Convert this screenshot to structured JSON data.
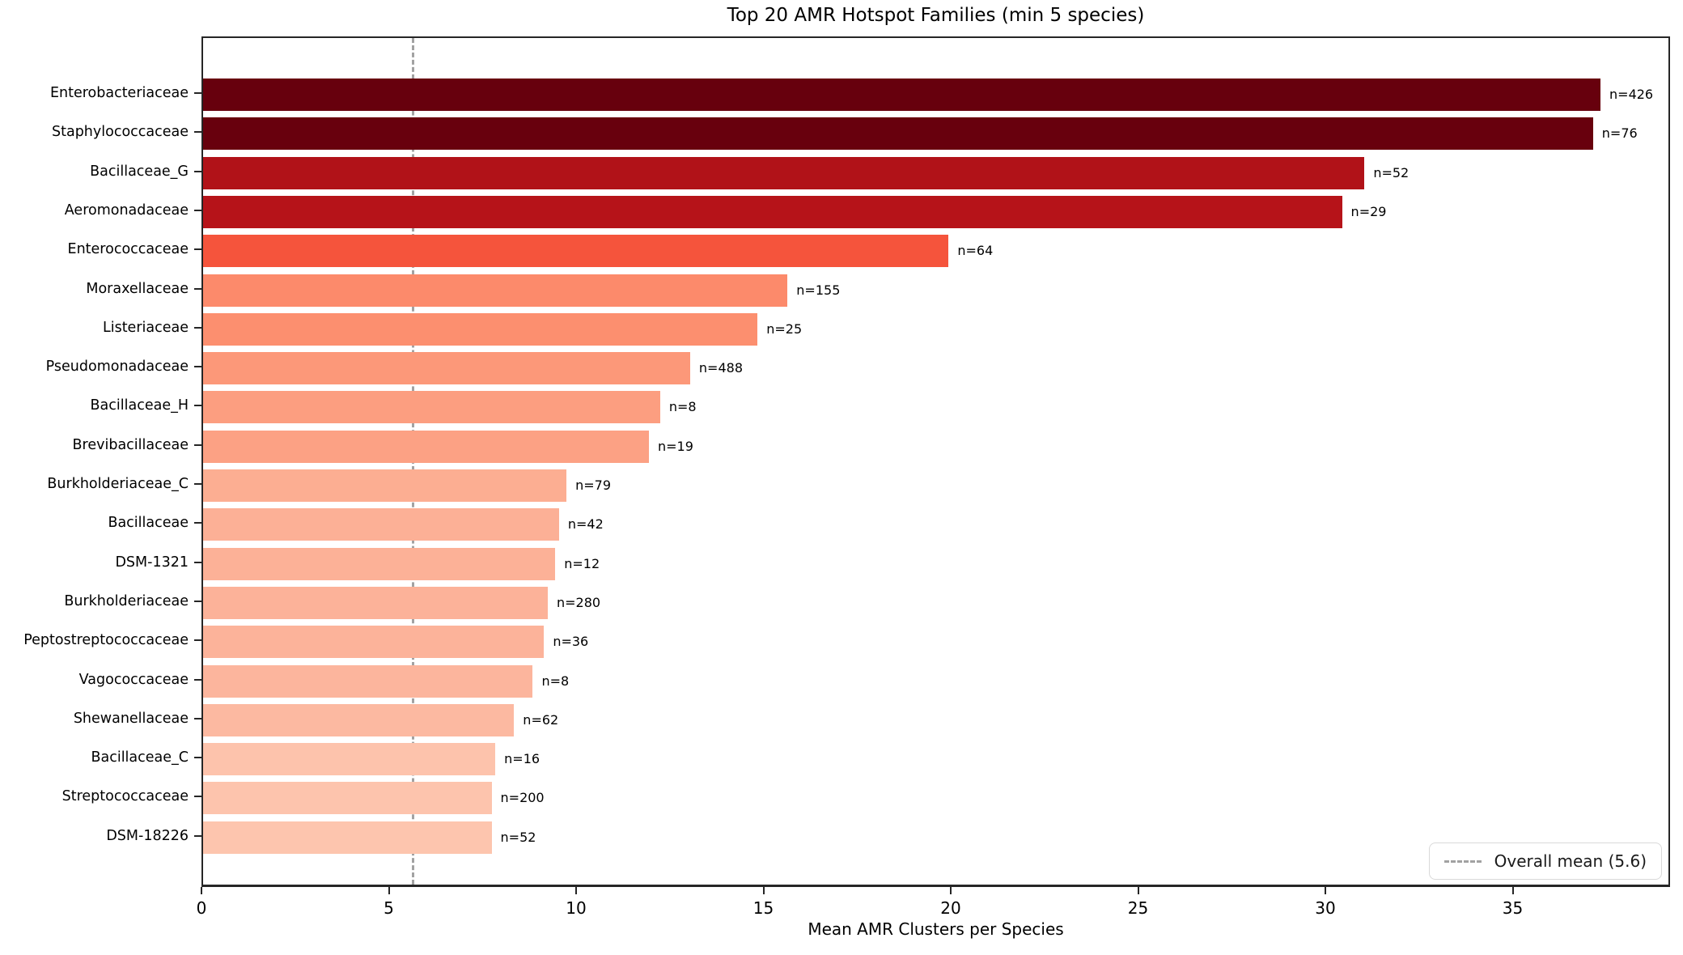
{
  "chart_data": {
    "type": "bar",
    "orientation": "horizontal",
    "title": "Top 20 AMR Hotspot Families (min 5 species)",
    "xlabel": "Mean AMR Clusters per Species",
    "ylabel": "",
    "grid": false,
    "xlim": [
      0,
      39.2
    ],
    "xticks": [
      0,
      5,
      10,
      15,
      20,
      25,
      30,
      35
    ],
    "categories": [
      "Enterobacteriaceae",
      "Staphylococcaceae",
      "Bacillaceae_G",
      "Aeromonadaceae",
      "Enterococcaceae",
      "Moraxellaceae",
      "Listeriaceae",
      "Pseudomonadaceae",
      "Bacillaceae_H",
      "Brevibacillaceae",
      "Burkholderiaceae_C",
      "Bacillaceae",
      "DSM-1321",
      "Burkholderiaceae",
      "Peptostreptococcaceae",
      "Vagococcaceae",
      "Shewanellaceae",
      "Bacillaceae_C",
      "Streptococcaceae",
      "DSM-18226"
    ],
    "values": [
      37.3,
      37.1,
      31.0,
      30.4,
      19.9,
      15.6,
      14.8,
      13.0,
      12.2,
      11.9,
      9.7,
      9.5,
      9.4,
      9.2,
      9.1,
      8.8,
      8.3,
      7.8,
      7.7,
      7.7
    ],
    "n_species": [
      426,
      76,
      52,
      29,
      64,
      155,
      25,
      488,
      8,
      19,
      79,
      42,
      12,
      280,
      36,
      8,
      62,
      16,
      200,
      52
    ],
    "bar_labels": [
      "n=426",
      "n=76",
      "n=52",
      "n=29",
      "n=64",
      "n=155",
      "n=25",
      "n=488",
      "n=8",
      "n=19",
      "n=79",
      "n=42",
      "n=12",
      "n=280",
      "n=36",
      "n=8",
      "n=62",
      "n=16",
      "n=200",
      "n=52"
    ],
    "bar_colors": [
      "#67000d",
      "#68000d",
      "#b11218",
      "#b61319",
      "#f5543c",
      "#fc8a6b",
      "#fc8f6f",
      "#fc9879",
      "#fc9e80",
      "#fca184",
      "#fcae92",
      "#fcb096",
      "#fcb197",
      "#fcb299",
      "#fcb39a",
      "#fcb59d",
      "#fcb9a1",
      "#fdc3ac",
      "#fdc4ad",
      "#fdc5ae"
    ],
    "mean_line": {
      "value": 5.6,
      "color": "#a2a2a2",
      "style": "dashed"
    },
    "legend": {
      "position": "lower right",
      "entries": [
        {
          "label": "Overall mean (5.6)",
          "marker": "dashed-gray-line"
        }
      ]
    }
  },
  "colors": {
    "background": "#ffffff",
    "spine": "#262626",
    "text": "#000000",
    "legend_border": "#d9d9d9",
    "mean_line": "#a2a2a2"
  }
}
